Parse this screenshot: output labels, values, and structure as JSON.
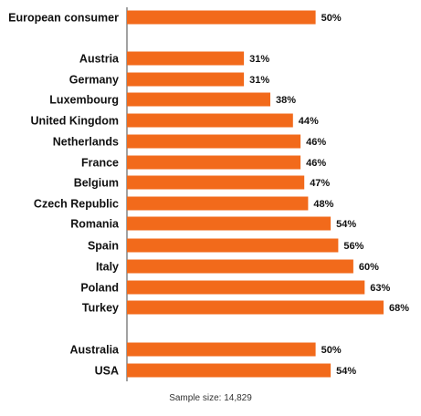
{
  "chart_data": {
    "type": "bar",
    "orientation": "horizontal",
    "categories": [
      "European consumer",
      "Austria",
      "Germany",
      "Luxembourg",
      "United Kingdom",
      "Netherlands",
      "France",
      "Belgium",
      "Czech Republic",
      "Romania",
      "Spain",
      "Italy",
      "Poland",
      "Turkey",
      "Australia",
      "USA"
    ],
    "values": [
      50,
      31,
      31,
      38,
      44,
      46,
      46,
      47,
      48,
      54,
      56,
      60,
      63,
      68,
      50,
      54
    ],
    "value_labels": [
      "50%",
      "31%",
      "31%",
      "38%",
      "44%",
      "46%",
      "46%",
      "47%",
      "48%",
      "54%",
      "56%",
      "60%",
      "63%",
      "68%",
      "50%",
      "54%"
    ],
    "xlim": [
      0,
      68
    ],
    "grid": false,
    "legend": false,
    "bar_color": "#f26a1b",
    "axis_color": "#444444",
    "title": "",
    "xlabel": "",
    "ylabel": ""
  },
  "note": "Sample size: 14,829"
}
